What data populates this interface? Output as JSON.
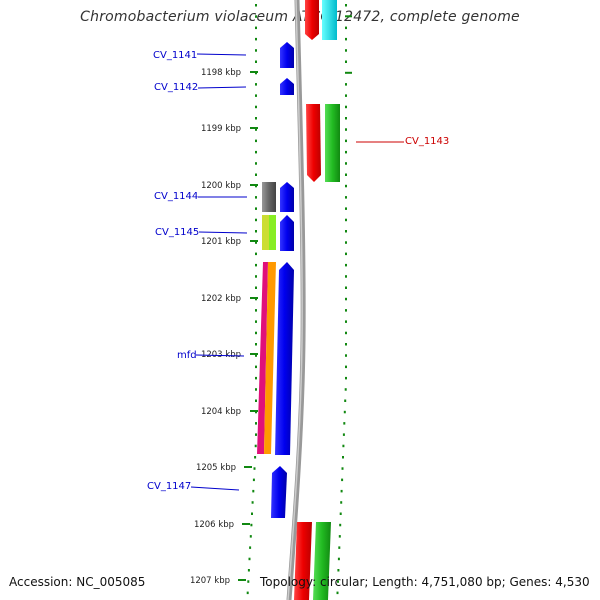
{
  "title": "Chromobacterium violaceum ATCC 12472, complete genome",
  "footer": {
    "accession": "Accession: NC_005085",
    "topology": "Topology: circular; Length: 4,751,080 bp; Genes: 4,530"
  },
  "colors": {
    "forward_label": "#0000cc",
    "reverse_label": "#cc0000",
    "backbone": "#888888",
    "tick": "#118811"
  },
  "kbp_ticks": [
    "1198 kbp",
    "1199 kbp",
    "1200 kbp",
    "1201 kbp",
    "1202 kbp",
    "1203 kbp",
    "1204 kbp",
    "1205 kbp",
    "1206 kbp",
    "1207 kbp"
  ],
  "gene_labels": [
    {
      "text": "CV_1141",
      "strand": "forward"
    },
    {
      "text": "CV_1142",
      "strand": "forward"
    },
    {
      "text": "CV_1143",
      "strand": "reverse"
    },
    {
      "text": "CV_1144",
      "strand": "forward"
    },
    {
      "text": "CV_1145",
      "strand": "forward"
    },
    {
      "text": "mfd",
      "strand": "forward"
    },
    {
      "text": "CV_1147",
      "strand": "forward"
    }
  ]
}
